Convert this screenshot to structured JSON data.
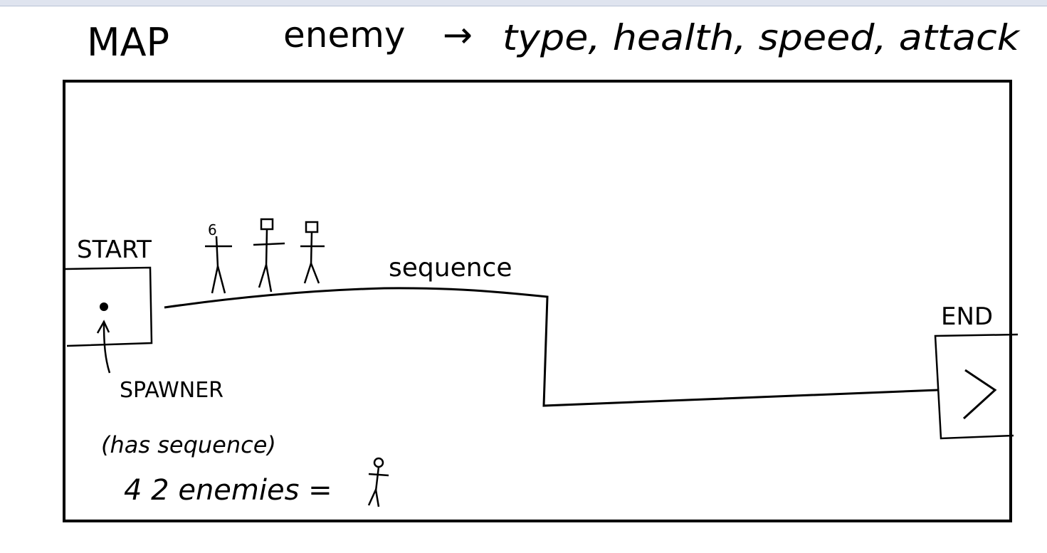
{
  "title": "MAP",
  "enemy_note": {
    "subject": "enemy",
    "arrow": "→",
    "attributes": "type, health, speed, attack"
  },
  "labels": {
    "start": "START",
    "end": "END",
    "sequence": "sequence",
    "spawner": "SPAWNER",
    "spawner_note": "(has sequence)",
    "enemy_count": "4 2 enemies ="
  },
  "colors": {
    "ink": "#000000",
    "paper": "#ffffff"
  }
}
